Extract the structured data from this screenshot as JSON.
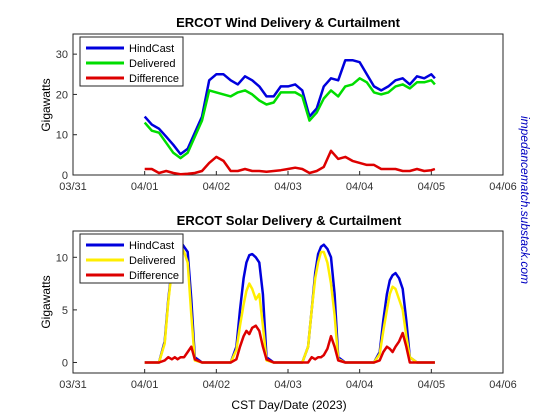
{
  "figure": {
    "xlabel": "CST Day/Date (2023)",
    "watermark": "impedancematch.substack.com"
  },
  "chart_data": [
    {
      "type": "line",
      "title": "ERCOT Wind Delivery & Curtailment",
      "ylabel": "Gigawatts",
      "x_ticks": [
        "03/31",
        "04/01",
        "04/02",
        "04/03",
        "04/04",
        "04/05",
        "04/06"
      ],
      "y_ticks": [
        "0",
        "10",
        "20",
        "30"
      ],
      "xlim_days": [
        0,
        6
      ],
      "ylim": [
        0,
        35
      ],
      "legend": "top-left",
      "series": [
        {
          "name": "HindCast",
          "color": "#0000dd",
          "x": [
            1.0,
            1.1,
            1.2,
            1.3,
            1.4,
            1.5,
            1.6,
            1.7,
            1.8,
            1.9,
            2.0,
            2.1,
            2.2,
            2.3,
            2.4,
            2.5,
            2.6,
            2.7,
            2.8,
            2.9,
            3.0,
            3.1,
            3.2,
            3.3,
            3.4,
            3.5,
            3.6,
            3.7,
            3.8,
            3.9,
            4.0,
            4.1,
            4.2,
            4.3,
            4.4,
            4.5,
            4.6,
            4.7,
            4.8,
            4.9,
            5.0,
            5.05
          ],
          "y": [
            14.5,
            12.5,
            11.5,
            9.5,
            7.5,
            5.2,
            6.5,
            10.5,
            14.5,
            23.5,
            25.0,
            25.0,
            23.5,
            22.5,
            24.5,
            23.5,
            22.0,
            19.5,
            19.5,
            22.0,
            22.0,
            22.5,
            21.0,
            14.5,
            16.5,
            22.0,
            24.0,
            23.5,
            28.5,
            28.5,
            28.0,
            25.0,
            22.0,
            21.0,
            22.0,
            23.5,
            24.0,
            22.5,
            24.5,
            24.0,
            25.0,
            24.0
          ]
        },
        {
          "name": "Delivered",
          "color": "#00dd00",
          "x": [
            1.0,
            1.1,
            1.2,
            1.3,
            1.4,
            1.5,
            1.6,
            1.7,
            1.8,
            1.9,
            2.0,
            2.1,
            2.2,
            2.3,
            2.4,
            2.5,
            2.6,
            2.7,
            2.8,
            2.9,
            3.0,
            3.1,
            3.2,
            3.3,
            3.4,
            3.5,
            3.6,
            3.7,
            3.8,
            3.9,
            4.0,
            4.1,
            4.2,
            4.3,
            4.4,
            4.5,
            4.6,
            4.7,
            4.8,
            4.9,
            5.0,
            5.05
          ],
          "y": [
            13.0,
            11.0,
            10.5,
            8.0,
            5.5,
            4.2,
            5.5,
            9.5,
            13.5,
            21.0,
            20.5,
            20.0,
            19.5,
            20.5,
            21.0,
            20.0,
            18.5,
            17.5,
            18.0,
            20.5,
            20.5,
            20.5,
            19.5,
            13.5,
            15.5,
            19.0,
            21.0,
            19.5,
            22.0,
            22.5,
            24.0,
            23.0,
            20.5,
            20.0,
            20.5,
            22.0,
            22.5,
            21.5,
            23.0,
            23.0,
            23.5,
            22.5
          ]
        },
        {
          "name": "Difference",
          "color": "#dd0000",
          "x": [
            1.0,
            1.1,
            1.2,
            1.3,
            1.4,
            1.5,
            1.6,
            1.7,
            1.8,
            1.9,
            2.0,
            2.1,
            2.2,
            2.3,
            2.4,
            2.5,
            2.6,
            2.7,
            2.8,
            2.9,
            3.0,
            3.1,
            3.2,
            3.3,
            3.4,
            3.5,
            3.6,
            3.7,
            3.8,
            3.9,
            4.0,
            4.1,
            4.2,
            4.3,
            4.4,
            4.5,
            4.6,
            4.7,
            4.8,
            4.9,
            5.0,
            5.05
          ],
          "y": [
            1.5,
            1.5,
            0.5,
            1.0,
            0.5,
            0.2,
            0.3,
            0.5,
            1.0,
            3.0,
            4.5,
            3.5,
            1.0,
            1.0,
            1.5,
            1.0,
            1.0,
            0.8,
            1.0,
            1.2,
            1.5,
            1.8,
            1.5,
            0.5,
            1.0,
            2.0,
            6.0,
            4.0,
            4.5,
            3.5,
            3.0,
            2.5,
            2.5,
            1.5,
            1.5,
            1.5,
            1.0,
            1.0,
            1.5,
            1.0,
            1.2,
            1.5
          ]
        }
      ]
    },
    {
      "type": "line",
      "title": "ERCOT Solar Delivery & Curtailment",
      "ylabel": "Gigawatts",
      "x_ticks": [
        "03/31",
        "04/01",
        "04/02",
        "04/03",
        "04/04",
        "04/05",
        "04/06"
      ],
      "y_ticks": [
        "0",
        "5",
        "10"
      ],
      "xlim_days": [
        0,
        6
      ],
      "ylim": [
        -1,
        12.5
      ],
      "legend": "top-left",
      "series": [
        {
          "name": "HindCast",
          "color": "#0000dd",
          "x": [
            1.0,
            1.2,
            1.28,
            1.33,
            1.38,
            1.42,
            1.46,
            1.5,
            1.55,
            1.6,
            1.65,
            1.7,
            1.8,
            2.0,
            2.2,
            2.28,
            2.33,
            2.38,
            2.42,
            2.46,
            2.5,
            2.55,
            2.6,
            2.65,
            2.7,
            2.8,
            3.0,
            3.2,
            3.28,
            3.33,
            3.38,
            3.42,
            3.46,
            3.5,
            3.55,
            3.6,
            3.65,
            3.7,
            3.8,
            4.0,
            4.2,
            4.28,
            4.33,
            4.38,
            4.42,
            4.46,
            4.5,
            4.55,
            4.6,
            4.65,
            4.7,
            4.8,
            5.0,
            5.05
          ],
          "y": [
            0,
            0,
            2.0,
            6.0,
            9.0,
            10.5,
            11.2,
            11.5,
            11.0,
            10.5,
            6.0,
            0.5,
            0,
            0,
            0,
            1.5,
            5.0,
            8.0,
            9.5,
            10.2,
            10.3,
            10.0,
            9.5,
            6.5,
            0.5,
            0,
            0,
            0,
            1.5,
            5.0,
            8.5,
            10.3,
            11.0,
            11.2,
            10.8,
            10.0,
            6.5,
            0.5,
            0,
            0,
            0,
            1.0,
            4.0,
            6.5,
            7.8,
            8.3,
            8.5,
            8.0,
            7.0,
            4.0,
            0.5,
            0,
            0,
            0
          ]
        },
        {
          "name": "Delivered",
          "color": "#ffee00",
          "x": [
            1.0,
            1.2,
            1.28,
            1.33,
            1.38,
            1.42,
            1.46,
            1.5,
            1.55,
            1.6,
            1.65,
            1.7,
            1.8,
            2.0,
            2.2,
            2.28,
            2.33,
            2.38,
            2.42,
            2.46,
            2.5,
            2.55,
            2.6,
            2.65,
            2.7,
            2.8,
            3.0,
            3.2,
            3.28,
            3.33,
            3.38,
            3.42,
            3.46,
            3.5,
            3.55,
            3.6,
            3.65,
            3.7,
            3.8,
            4.0,
            4.2,
            4.28,
            4.33,
            4.38,
            4.42,
            4.46,
            4.5,
            4.55,
            4.6,
            4.65,
            4.7,
            4.8,
            5.0,
            5.05
          ],
          "y": [
            0,
            0,
            1.8,
            5.8,
            8.8,
            10.0,
            10.8,
            11.0,
            10.5,
            9.5,
            4.5,
            0.2,
            0,
            0,
            0,
            1.2,
            3.5,
            5.5,
            6.8,
            7.5,
            7.0,
            6.0,
            6.5,
            3.5,
            0.2,
            0,
            0,
            0,
            1.5,
            5.0,
            8.0,
            9.5,
            10.5,
            10.5,
            9.5,
            7.5,
            4.5,
            0.3,
            0,
            0,
            0,
            0.8,
            3.0,
            5.0,
            6.5,
            7.2,
            7.0,
            6.0,
            5.0,
            2.5,
            0.5,
            0,
            0,
            0
          ]
        },
        {
          "name": "Difference",
          "color": "#dd0000",
          "x": [
            1.0,
            1.2,
            1.28,
            1.33,
            1.38,
            1.42,
            1.46,
            1.5,
            1.55,
            1.6,
            1.65,
            1.7,
            1.8,
            2.0,
            2.2,
            2.28,
            2.33,
            2.38,
            2.42,
            2.46,
            2.5,
            2.55,
            2.6,
            2.65,
            2.7,
            2.8,
            3.0,
            3.2,
            3.28,
            3.33,
            3.38,
            3.42,
            3.46,
            3.5,
            3.55,
            3.6,
            3.65,
            3.7,
            3.8,
            4.0,
            4.2,
            4.28,
            4.33,
            4.38,
            4.42,
            4.46,
            4.5,
            4.55,
            4.6,
            4.65,
            4.7,
            4.8,
            5.0,
            5.05
          ],
          "y": [
            0,
            0,
            0.2,
            0.5,
            0.3,
            0.5,
            0.3,
            0.5,
            0.5,
            1.0,
            1.5,
            0.3,
            0,
            0,
            0,
            0.3,
            1.5,
            2.5,
            3.0,
            2.7,
            3.3,
            3.5,
            3.0,
            1.5,
            0.3,
            0,
            0,
            0,
            0,
            0.5,
            0.3,
            0.5,
            0.5,
            0.7,
            1.3,
            2.5,
            1.5,
            0.2,
            0,
            0,
            0,
            0.2,
            1.0,
            1.5,
            1.3,
            1.0,
            1.5,
            2.0,
            2.8,
            1.5,
            0,
            0,
            0,
            0
          ]
        }
      ]
    }
  ]
}
